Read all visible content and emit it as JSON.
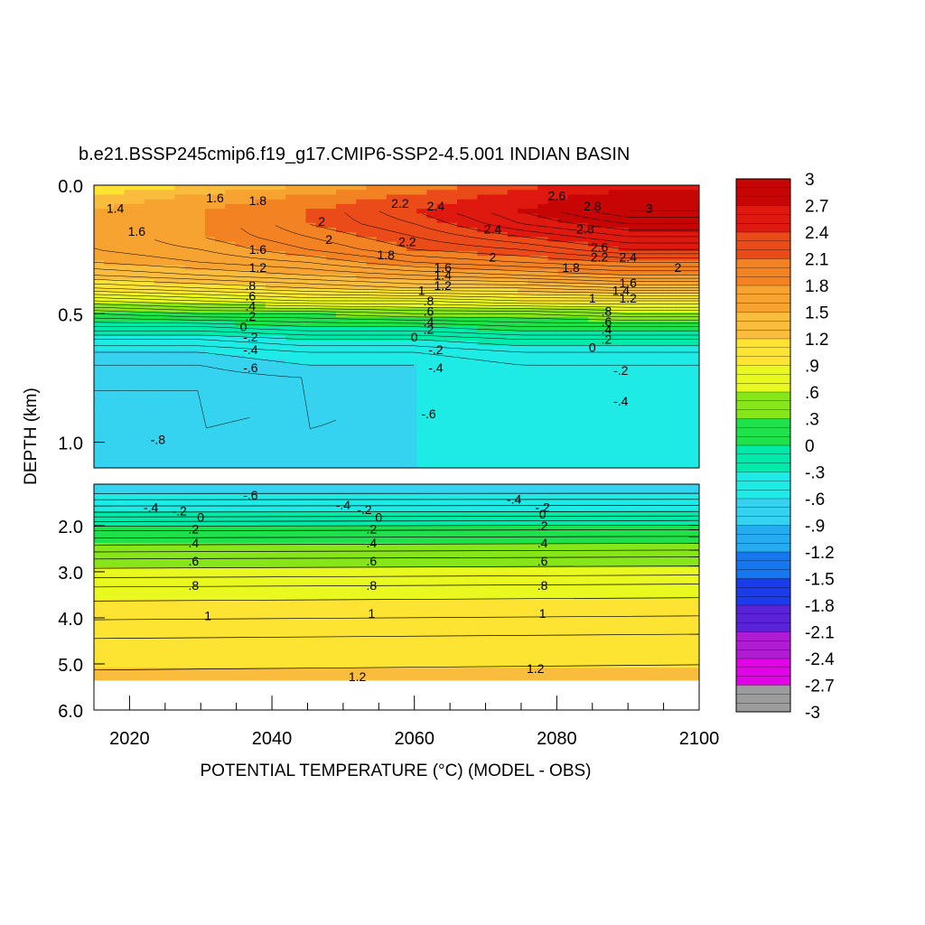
{
  "chart_data": {
    "type": "heatmap",
    "title": "b.e21.BSSP245cmip6.f19_g17.CMIP6-SSP2-4.5.001 INDIAN BASIN",
    "xlabel": "POTENTIAL TEMPERATURE (°C) (MODEL - OBS)",
    "ylabel": "DEPTH (km)",
    "x_ticks": [
      "2020",
      "2040",
      "2060",
      "2080",
      "2100"
    ],
    "x_tick_values": [
      2020,
      2040,
      2060,
      2080,
      2100
    ],
    "xlim": [
      2015,
      2100
    ],
    "upper_panel": {
      "ylim": [
        0.0,
        1.1
      ],
      "y_ticks": [
        "0.0",
        "0.5",
        "1.0"
      ],
      "y_tick_values": [
        0.0,
        0.5,
        1.0
      ]
    },
    "lower_panel": {
      "ylim": [
        1.1,
        6.0
      ],
      "data_bottom": 5.35,
      "y_ticks": [
        "2.0",
        "3.0",
        "4.0",
        "5.0",
        "6.0"
      ],
      "y_tick_values": [
        2.0,
        3.0,
        4.0,
        5.0,
        6.0
      ]
    },
    "colorbar": {
      "min": -3,
      "max": 3,
      "step": 0.3,
      "labels": [
        "3",
        "2.7",
        "2.4",
        "2.1",
        "1.8",
        "1.5",
        "1.2",
        ".9",
        ".6",
        ".3",
        "0",
        "-.3",
        "-.6",
        "-.9",
        "-1.2",
        "-1.5",
        "-1.8",
        "-2.1",
        "-2.4",
        "-2.7",
        "-3"
      ],
      "label_values": [
        3,
        2.7,
        2.4,
        2.1,
        1.8,
        1.5,
        1.2,
        0.9,
        0.6,
        0.3,
        0,
        -0.3,
        -0.6,
        -0.9,
        -1.2,
        -1.5,
        -1.8,
        -2.1,
        -2.4,
        -2.7,
        -3
      ]
    },
    "upper_profile": {
      "depths": [
        0.0,
        0.05,
        0.1,
        0.15,
        0.2,
        0.25,
        0.3,
        0.35,
        0.4,
        0.45,
        0.5,
        0.55,
        0.6,
        0.65,
        0.7,
        0.75,
        0.8,
        0.85,
        0.9,
        0.95,
        1.0,
        1.05,
        1.1
      ],
      "years": [
        2015,
        2030,
        2045,
        2060,
        2075,
        2090,
        2100
      ],
      "values": [
        [
          0.9,
          1.2,
          1.5,
          1.9,
          2.3,
          2.6,
          2.6
        ],
        [
          1.3,
          1.6,
          1.9,
          2.2,
          2.6,
          2.9,
          2.9
        ],
        [
          1.5,
          1.8,
          2.1,
          2.4,
          2.7,
          3.0,
          3.0
        ],
        [
          1.6,
          1.8,
          2.1,
          2.3,
          2.6,
          2.8,
          2.8
        ],
        [
          1.6,
          1.8,
          2.0,
          2.2,
          2.4,
          2.6,
          2.6
        ],
        [
          1.6,
          1.7,
          1.9,
          2.1,
          2.2,
          2.4,
          2.4
        ],
        [
          1.5,
          1.6,
          1.7,
          1.9,
          2.0,
          2.1,
          2.1
        ],
        [
          1.3,
          1.4,
          1.5,
          1.6,
          1.7,
          1.8,
          1.8
        ],
        [
          1.0,
          1.1,
          1.2,
          1.3,
          1.3,
          1.4,
          1.4
        ],
        [
          0.6,
          0.7,
          0.8,
          0.8,
          0.9,
          0.9,
          0.9
        ],
        [
          0.2,
          0.3,
          0.3,
          0.4,
          0.4,
          0.5,
          0.5
        ],
        [
          -0.1,
          -0.1,
          0.0,
          0.0,
          0.1,
          0.1,
          0.1
        ],
        [
          -0.4,
          -0.4,
          -0.3,
          -0.3,
          -0.2,
          -0.2,
          -0.2
        ],
        [
          -0.6,
          -0.6,
          -0.5,
          -0.5,
          -0.4,
          -0.4,
          -0.4
        ],
        [
          -0.7,
          -0.7,
          -0.6,
          -0.6,
          -0.5,
          -0.5,
          -0.5
        ],
        [
          -0.75,
          -0.75,
          -0.7,
          -0.6,
          -0.55,
          -0.5,
          -0.5
        ],
        [
          -0.8,
          -0.8,
          -0.7,
          -0.6,
          -0.55,
          -0.5,
          -0.5
        ],
        [
          -0.85,
          -0.85,
          -0.75,
          -0.6,
          -0.55,
          -0.5,
          -0.5
        ],
        [
          -0.85,
          -0.85,
          -0.75,
          -0.6,
          -0.55,
          -0.5,
          -0.5
        ],
        [
          -0.85,
          -0.8,
          -0.7,
          -0.6,
          -0.55,
          -0.5,
          -0.5
        ],
        [
          -0.85,
          -0.8,
          -0.7,
          -0.6,
          -0.55,
          -0.5,
          -0.5
        ],
        [
          -0.85,
          -0.8,
          -0.7,
          -0.6,
          -0.55,
          -0.5,
          -0.5
        ],
        [
          -0.85,
          -0.8,
          -0.7,
          -0.6,
          -0.55,
          -0.5,
          -0.5
        ]
      ]
    },
    "lower_profile": {
      "depths": [
        1.1,
        1.3,
        1.5,
        1.7,
        1.9,
        2.1,
        2.4,
        2.7,
        3.0,
        3.3,
        3.6,
        4.0,
        4.4,
        4.8,
        5.35
      ],
      "values": [
        -0.7,
        -0.6,
        -0.45,
        -0.3,
        -0.1,
        0.1,
        0.3,
        0.5,
        0.65,
        0.8,
        0.9,
        1.0,
        1.1,
        1.15,
        1.25
      ]
    },
    "contour_labels": [
      {
        "text": "1.4",
        "x": 2018,
        "y": 0.09
      },
      {
        "text": "1.6",
        "x": 2021,
        "y": 0.18
      },
      {
        "text": "1.6",
        "x": 2032,
        "y": 0.05
      },
      {
        "text": "1.8",
        "x": 2038,
        "y": 0.06
      },
      {
        "text": "2",
        "x": 2047,
        "y": 0.14
      },
      {
        "text": "2",
        "x": 2048,
        "y": 0.21
      },
      {
        "text": "2.2",
        "x": 2058,
        "y": 0.07
      },
      {
        "text": "2.4",
        "x": 2063,
        "y": 0.08
      },
      {
        "text": "2.2",
        "x": 2059,
        "y": 0.22
      },
      {
        "text": "1.8",
        "x": 2056,
        "y": 0.27
      },
      {
        "text": "2.4",
        "x": 2071,
        "y": 0.17
      },
      {
        "text": "2",
        "x": 2071,
        "y": 0.28
      },
      {
        "text": "2.6",
        "x": 2080,
        "y": 0.04
      },
      {
        "text": "2.8",
        "x": 2085,
        "y": 0.08
      },
      {
        "text": "2.8",
        "x": 2084,
        "y": 0.17
      },
      {
        "text": "3",
        "x": 2093,
        "y": 0.09
      },
      {
        "text": "2.6",
        "x": 2086,
        "y": 0.24
      },
      {
        "text": "2.2",
        "x": 2086,
        "y": 0.28
      },
      {
        "text": "2.4",
        "x": 2090,
        "y": 0.28
      },
      {
        "text": "1.8",
        "x": 2082,
        "y": 0.32
      },
      {
        "text": "2",
        "x": 2097,
        "y": 0.32
      },
      {
        "text": "1.6",
        "x": 2038,
        "y": 0.25
      },
      {
        "text": "1.2",
        "x": 2038,
        "y": 0.32
      },
      {
        "text": ".8",
        "x": 2037,
        "y": 0.39
      },
      {
        "text": ".6",
        "x": 2037,
        "y": 0.43
      },
      {
        "text": ".4",
        "x": 2037,
        "y": 0.47
      },
      {
        "text": ".2",
        "x": 2037,
        "y": 0.51
      },
      {
        "text": "0",
        "x": 2036,
        "y": 0.55
      },
      {
        "text": "-.2",
        "x": 2037,
        "y": 0.59
      },
      {
        "text": "-.4",
        "x": 2037,
        "y": 0.64
      },
      {
        "text": "-.6",
        "x": 2037,
        "y": 0.71
      },
      {
        "text": "-.8",
        "x": 2024,
        "y": 0.99
      },
      {
        "text": "1.6",
        "x": 2064,
        "y": 0.32
      },
      {
        "text": "1.4",
        "x": 2064,
        "y": 0.35
      },
      {
        "text": "1.2",
        "x": 2064,
        "y": 0.39
      },
      {
        "text": "1",
        "x": 2061,
        "y": 0.41
      },
      {
        "text": ".8",
        "x": 2062,
        "y": 0.45
      },
      {
        "text": ".6",
        "x": 2062,
        "y": 0.49
      },
      {
        "text": ".4",
        "x": 2062,
        "y": 0.53
      },
      {
        "text": ".2",
        "x": 2062,
        "y": 0.56
      },
      {
        "text": "0",
        "x": 2060,
        "y": 0.59
      },
      {
        "text": "-.2",
        "x": 2063,
        "y": 0.64
      },
      {
        "text": "-.4",
        "x": 2063,
        "y": 0.71
      },
      {
        "text": "-.6",
        "x": 2062,
        "y": 0.89
      },
      {
        "text": "1.6",
        "x": 2090,
        "y": 0.38
      },
      {
        "text": "1.4",
        "x": 2089,
        "y": 0.41
      },
      {
        "text": "1.2",
        "x": 2090,
        "y": 0.44
      },
      {
        "text": "1",
        "x": 2085,
        "y": 0.44
      },
      {
        "text": ".8",
        "x": 2087,
        "y": 0.49
      },
      {
        "text": ".6",
        "x": 2087,
        "y": 0.53
      },
      {
        "text": ".4",
        "x": 2087,
        "y": 0.56
      },
      {
        "text": ".2",
        "x": 2087,
        "y": 0.6
      },
      {
        "text": "0",
        "x": 2085,
        "y": 0.63
      },
      {
        "text": "-.2",
        "x": 2089,
        "y": 0.72
      },
      {
        "text": "-.4",
        "x": 2089,
        "y": 0.84
      },
      {
        "text": "-.6",
        "x": 2037,
        "y": 1.34
      },
      {
        "text": "-.4",
        "x": 2023,
        "y": 1.6
      },
      {
        "text": "-.2",
        "x": 2027,
        "y": 1.68
      },
      {
        "text": "0",
        "x": 2030,
        "y": 1.82
      },
      {
        "text": ".2",
        "x": 2029,
        "y": 2.07
      },
      {
        "text": ".4",
        "x": 2029,
        "y": 2.37
      },
      {
        "text": ".6",
        "x": 2029,
        "y": 2.77
      },
      {
        "text": ".8",
        "x": 2029,
        "y": 3.3
      },
      {
        "text": "1",
        "x": 2031,
        "y": 3.95
      },
      {
        "text": "-.4",
        "x": 2050,
        "y": 1.55
      },
      {
        "text": "-.2",
        "x": 2053,
        "y": 1.65
      },
      {
        "text": "0",
        "x": 2055,
        "y": 1.82
      },
      {
        "text": ".2",
        "x": 2054,
        "y": 2.07
      },
      {
        "text": ".4",
        "x": 2054,
        "y": 2.37
      },
      {
        "text": ".6",
        "x": 2054,
        "y": 2.77
      },
      {
        "text": ".8",
        "x": 2054,
        "y": 3.3
      },
      {
        "text": "1",
        "x": 2054,
        "y": 3.9
      },
      {
        "text": "1.2",
        "x": 2052,
        "y": 5.27
      },
      {
        "text": "-.4",
        "x": 2074,
        "y": 1.42
      },
      {
        "text": "-.2",
        "x": 2078,
        "y": 1.6
      },
      {
        "text": "0",
        "x": 2078,
        "y": 1.75
      },
      {
        "text": ".2",
        "x": 2078,
        "y": 2.0
      },
      {
        "text": ".4",
        "x": 2078,
        "y": 2.37
      },
      {
        "text": ".6",
        "x": 2078,
        "y": 2.77
      },
      {
        "text": ".8",
        "x": 2078,
        "y": 3.3
      },
      {
        "text": "1",
        "x": 2078,
        "y": 3.9
      },
      {
        "text": "1.2",
        "x": 2077,
        "y": 5.1
      }
    ]
  }
}
